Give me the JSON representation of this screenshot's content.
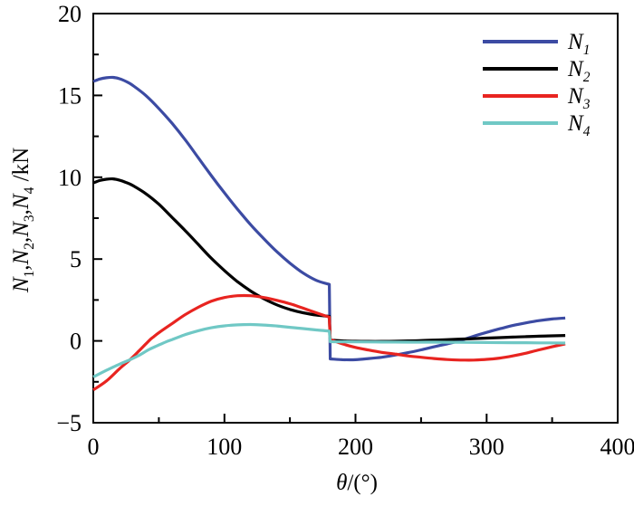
{
  "chart_data": {
    "type": "line",
    "title": "",
    "background": "#ffffff",
    "axis_color": "#000000",
    "x_axis": {
      "label_parts": [
        {
          "t": "θ",
          "italic": true
        },
        {
          "t": "/(°)"
        }
      ],
      "min": 0,
      "max": 400,
      "major_ticks": [
        {
          "v": 0,
          "label": "0"
        },
        {
          "v": 100,
          "label": "100"
        },
        {
          "v": 200,
          "label": "200"
        },
        {
          "v": 300,
          "label": "300"
        },
        {
          "v": 400,
          "label": "400"
        }
      ],
      "minor_ticks": [
        50,
        150,
        250,
        350
      ],
      "grid": false
    },
    "y_axis": {
      "label_parts": [
        {
          "t": "N",
          "italic": true
        },
        {
          "t": "1",
          "sub": true
        },
        {
          "t": ","
        },
        {
          "t": "N",
          "italic": true
        },
        {
          "t": "2",
          "sub": true
        },
        {
          "t": ","
        },
        {
          "t": "N",
          "italic": true
        },
        {
          "t": "3",
          "sub": true
        },
        {
          "t": ","
        },
        {
          "t": "N",
          "italic": true
        },
        {
          "t": "4",
          "sub": true
        },
        {
          "t": " /kN"
        }
      ],
      "min": -5,
      "max": 20,
      "major_ticks": [
        {
          "v": -5,
          "label": "−5"
        },
        {
          "v": 0,
          "label": "0"
        },
        {
          "v": 5,
          "label": "5"
        },
        {
          "v": 10,
          "label": "10"
        },
        {
          "v": 15,
          "label": "15"
        },
        {
          "v": 20,
          "label": "20"
        }
      ],
      "minor_ticks": [
        -2.5,
        2.5,
        7.5,
        12.5,
        17.5
      ],
      "grid": false
    },
    "legend": {
      "position": "top-right-inside"
    },
    "discontinuity_x": 180,
    "series": [
      {
        "id": "N1",
        "label_parts": [
          {
            "t": "N",
            "italic": true
          },
          {
            "t": "1",
            "sub": true
          }
        ],
        "color": "#3C4BA3",
        "points_before_jump": [
          [
            0,
            15.85
          ],
          [
            5,
            16.0
          ],
          [
            10,
            16.08
          ],
          [
            15,
            16.1
          ],
          [
            20,
            16.02
          ],
          [
            25,
            15.85
          ],
          [
            30,
            15.62
          ],
          [
            40,
            15.0
          ],
          [
            50,
            14.2
          ],
          [
            60,
            13.3
          ],
          [
            70,
            12.3
          ],
          [
            80,
            11.2
          ],
          [
            90,
            10.1
          ],
          [
            100,
            9.05
          ],
          [
            110,
            8.05
          ],
          [
            120,
            7.1
          ],
          [
            130,
            6.25
          ],
          [
            140,
            5.45
          ],
          [
            150,
            4.75
          ],
          [
            160,
            4.15
          ],
          [
            170,
            3.7
          ],
          [
            180,
            3.45
          ]
        ],
        "points_after_jump": [
          [
            180.7,
            -1.1
          ],
          [
            190,
            -1.15
          ],
          [
            200,
            -1.15
          ],
          [
            210,
            -1.08
          ],
          [
            220,
            -1.0
          ],
          [
            230,
            -0.87
          ],
          [
            240,
            -0.72
          ],
          [
            250,
            -0.55
          ],
          [
            260,
            -0.36
          ],
          [
            270,
            -0.18
          ],
          [
            280,
            0.02
          ],
          [
            290,
            0.28
          ],
          [
            300,
            0.52
          ],
          [
            310,
            0.74
          ],
          [
            320,
            0.94
          ],
          [
            330,
            1.1
          ],
          [
            340,
            1.24
          ],
          [
            350,
            1.34
          ],
          [
            360,
            1.4
          ]
        ]
      },
      {
        "id": "N2",
        "label_parts": [
          {
            "t": "N",
            "italic": true
          },
          {
            "t": "2",
            "sub": true
          }
        ],
        "color": "#000000",
        "points_before_jump": [
          [
            0,
            9.65
          ],
          [
            5,
            9.8
          ],
          [
            10,
            9.88
          ],
          [
            15,
            9.9
          ],
          [
            20,
            9.82
          ],
          [
            25,
            9.68
          ],
          [
            30,
            9.5
          ],
          [
            40,
            9.0
          ],
          [
            50,
            8.35
          ],
          [
            60,
            7.55
          ],
          [
            70,
            6.75
          ],
          [
            80,
            5.9
          ],
          [
            90,
            5.05
          ],
          [
            100,
            4.3
          ],
          [
            110,
            3.62
          ],
          [
            120,
            3.05
          ],
          [
            130,
            2.58
          ],
          [
            140,
            2.2
          ],
          [
            150,
            1.92
          ],
          [
            160,
            1.72
          ],
          [
            170,
            1.58
          ],
          [
            180,
            1.5
          ]
        ],
        "points_after_jump": [
          [
            180.7,
            0.05
          ],
          [
            190,
            0.0
          ],
          [
            200,
            -0.02
          ],
          [
            210,
            -0.03
          ],
          [
            220,
            -0.03
          ],
          [
            230,
            -0.02
          ],
          [
            240,
            0.0
          ],
          [
            250,
            0.02
          ],
          [
            260,
            0.05
          ],
          [
            270,
            0.08
          ],
          [
            280,
            0.11
          ],
          [
            290,
            0.14
          ],
          [
            300,
            0.17
          ],
          [
            310,
            0.2
          ],
          [
            320,
            0.23
          ],
          [
            330,
            0.26
          ],
          [
            340,
            0.29
          ],
          [
            350,
            0.31
          ],
          [
            360,
            0.33
          ]
        ]
      },
      {
        "id": "N3",
        "label_parts": [
          {
            "t": "N",
            "italic": true
          },
          {
            "t": "3",
            "sub": true
          }
        ],
        "color": "#E82420",
        "points_before_jump": [
          [
            0,
            -3.0
          ],
          [
            10,
            -2.45
          ],
          [
            20,
            -1.7
          ],
          [
            28,
            -1.15
          ],
          [
            35,
            -0.6
          ],
          [
            43,
            0.05
          ],
          [
            46,
            0.25
          ],
          [
            50,
            0.5
          ],
          [
            60,
            1.05
          ],
          [
            70,
            1.6
          ],
          [
            80,
            2.05
          ],
          [
            90,
            2.42
          ],
          [
            100,
            2.65
          ],
          [
            110,
            2.76
          ],
          [
            120,
            2.76
          ],
          [
            130,
            2.65
          ],
          [
            140,
            2.48
          ],
          [
            150,
            2.27
          ],
          [
            160,
            2.0
          ],
          [
            170,
            1.72
          ],
          [
            180,
            1.45
          ]
        ],
        "points_after_jump": [
          [
            180.7,
            0.08
          ],
          [
            190,
            -0.18
          ],
          [
            200,
            -0.4
          ],
          [
            210,
            -0.56
          ],
          [
            220,
            -0.7
          ],
          [
            230,
            -0.8
          ],
          [
            240,
            -0.92
          ],
          [
            250,
            -1.0
          ],
          [
            260,
            -1.08
          ],
          [
            270,
            -1.14
          ],
          [
            280,
            -1.17
          ],
          [
            290,
            -1.17
          ],
          [
            300,
            -1.13
          ],
          [
            310,
            -1.05
          ],
          [
            320,
            -0.92
          ],
          [
            330,
            -0.75
          ],
          [
            340,
            -0.55
          ],
          [
            350,
            -0.36
          ],
          [
            360,
            -0.18
          ]
        ]
      },
      {
        "id": "N4",
        "label_parts": [
          {
            "t": "N",
            "italic": true
          },
          {
            "t": "4",
            "sub": true
          }
        ],
        "color": "#70C8C5",
        "points_before_jump": [
          [
            0,
            -2.2
          ],
          [
            10,
            -1.8
          ],
          [
            20,
            -1.42
          ],
          [
            28,
            -1.15
          ],
          [
            35,
            -0.88
          ],
          [
            42,
            -0.55
          ],
          [
            48,
            -0.32
          ],
          [
            52,
            -0.18
          ],
          [
            56,
            -0.04
          ],
          [
            60,
            0.08
          ],
          [
            70,
            0.38
          ],
          [
            80,
            0.62
          ],
          [
            90,
            0.8
          ],
          [
            100,
            0.92
          ],
          [
            110,
            0.98
          ],
          [
            120,
            1.0
          ],
          [
            130,
            0.97
          ],
          [
            140,
            0.91
          ],
          [
            150,
            0.83
          ],
          [
            160,
            0.75
          ],
          [
            170,
            0.67
          ],
          [
            180,
            0.6
          ]
        ],
        "points_after_jump": [
          [
            180.7,
            -0.05
          ],
          [
            200,
            -0.06
          ],
          [
            220,
            -0.07
          ],
          [
            240,
            -0.08
          ],
          [
            260,
            -0.08
          ],
          [
            280,
            -0.09
          ],
          [
            300,
            -0.1
          ],
          [
            320,
            -0.11
          ],
          [
            340,
            -0.12
          ],
          [
            360,
            -0.13
          ]
        ]
      }
    ]
  }
}
